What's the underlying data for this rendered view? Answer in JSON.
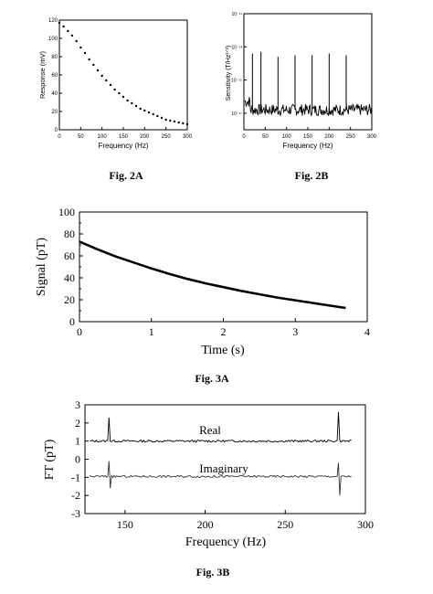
{
  "chart_data": [
    {
      "id": "fig2a",
      "caption": "Fig. 2A",
      "type": "scatter",
      "xlabel": "Frequency (Hz)",
      "ylabel": "Response (mV)",
      "xlim": [
        0,
        300
      ],
      "ylim": [
        0,
        120
      ],
      "xticks": [
        0,
        50,
        100,
        150,
        200,
        250,
        300
      ],
      "yticks": [
        0,
        20,
        40,
        60,
        80,
        100,
        120
      ],
      "x": [
        0,
        10,
        20,
        30,
        40,
        50,
        60,
        70,
        80,
        90,
        100,
        110,
        120,
        130,
        140,
        150,
        160,
        170,
        180,
        190,
        200,
        210,
        220,
        230,
        240,
        250,
        260,
        270,
        280,
        290,
        300
      ],
      "y": [
        117,
        113,
        108,
        103,
        97,
        90,
        84,
        77,
        71,
        65,
        59,
        54,
        49,
        44,
        40,
        36,
        32,
        29,
        26,
        23,
        21,
        19,
        17,
        15,
        13,
        11,
        10,
        9,
        8,
        7,
        6
      ]
    },
    {
      "id": "fig2b",
      "caption": "Fig. 2B",
      "type": "line",
      "xlabel": "Frequency (Hz)",
      "ylabel": "Sensitivity (T/Hz¹ᐟ²)",
      "xlim": [
        0,
        300
      ],
      "ylim_log10": [
        -18,
        -11
      ],
      "xticks": [
        0,
        50,
        100,
        150,
        200,
        250,
        300
      ],
      "ytick_labels": [
        "10⁻¹¹",
        "10⁻¹³",
        "10⁻¹⁵",
        "10⁻¹⁷"
      ],
      "ytick_exponents": [
        -11,
        -13,
        -15,
        -17
      ],
      "noise_floor_log10": -16.8,
      "peaks": [
        {
          "x": 20,
          "log10": -13.4
        },
        {
          "x": 40,
          "log10": -13.3
        },
        {
          "x": 80,
          "log10": -13.6
        },
        {
          "x": 120,
          "log10": -13.5
        },
        {
          "x": 160,
          "log10": -13.5
        },
        {
          "x": 200,
          "log10": -13.4
        },
        {
          "x": 240,
          "log10": -13.5
        }
      ]
    },
    {
      "id": "fig3a",
      "caption": "Fig. 3A",
      "type": "line",
      "xlabel": "Time (s)",
      "ylabel": "Signal (pT)",
      "xlim": [
        0,
        4
      ],
      "ylim": [
        0,
        100
      ],
      "xticks": [
        0,
        1,
        2,
        3,
        4
      ],
      "yticks": [
        0,
        10,
        20,
        30,
        40,
        50,
        60,
        70,
        80,
        90,
        100
      ],
      "x": [
        0,
        0.25,
        0.5,
        0.75,
        1.0,
        1.25,
        1.5,
        1.75,
        2.0,
        2.25,
        2.5,
        2.75,
        3.0,
        3.25,
        3.5,
        3.7
      ],
      "y": [
        73,
        66,
        59.5,
        54,
        48.5,
        43.5,
        39,
        35,
        31.5,
        28,
        25,
        22,
        19.5,
        17,
        14.5,
        12.5
      ]
    },
    {
      "id": "fig3b",
      "caption": "Fig. 3B",
      "type": "line",
      "xlabel": "Frequency (Hz)",
      "ylabel": "FT (pT)",
      "xlim": [
        125,
        300
      ],
      "ylim": [
        -3,
        3
      ],
      "xticks": [
        150,
        200,
        250,
        300
      ],
      "yticks": [
        -3,
        -2,
        -1,
        0,
        1,
        2,
        3
      ],
      "series": [
        {
          "name": "Real",
          "baseline": 1.0,
          "spikes": [
            {
              "x": 140,
              "y": 2.3
            },
            {
              "x": 283,
              "y": 2.6
            }
          ]
        },
        {
          "name": "Imaginary",
          "baseline": -0.95,
          "spikes": [
            {
              "x": 140,
              "y": -0.1,
              "y2": -1.6
            },
            {
              "x": 283,
              "y": -0.2,
              "y2": -2.0
            }
          ]
        }
      ],
      "annotations": [
        "Real",
        "Imaginary"
      ]
    }
  ]
}
